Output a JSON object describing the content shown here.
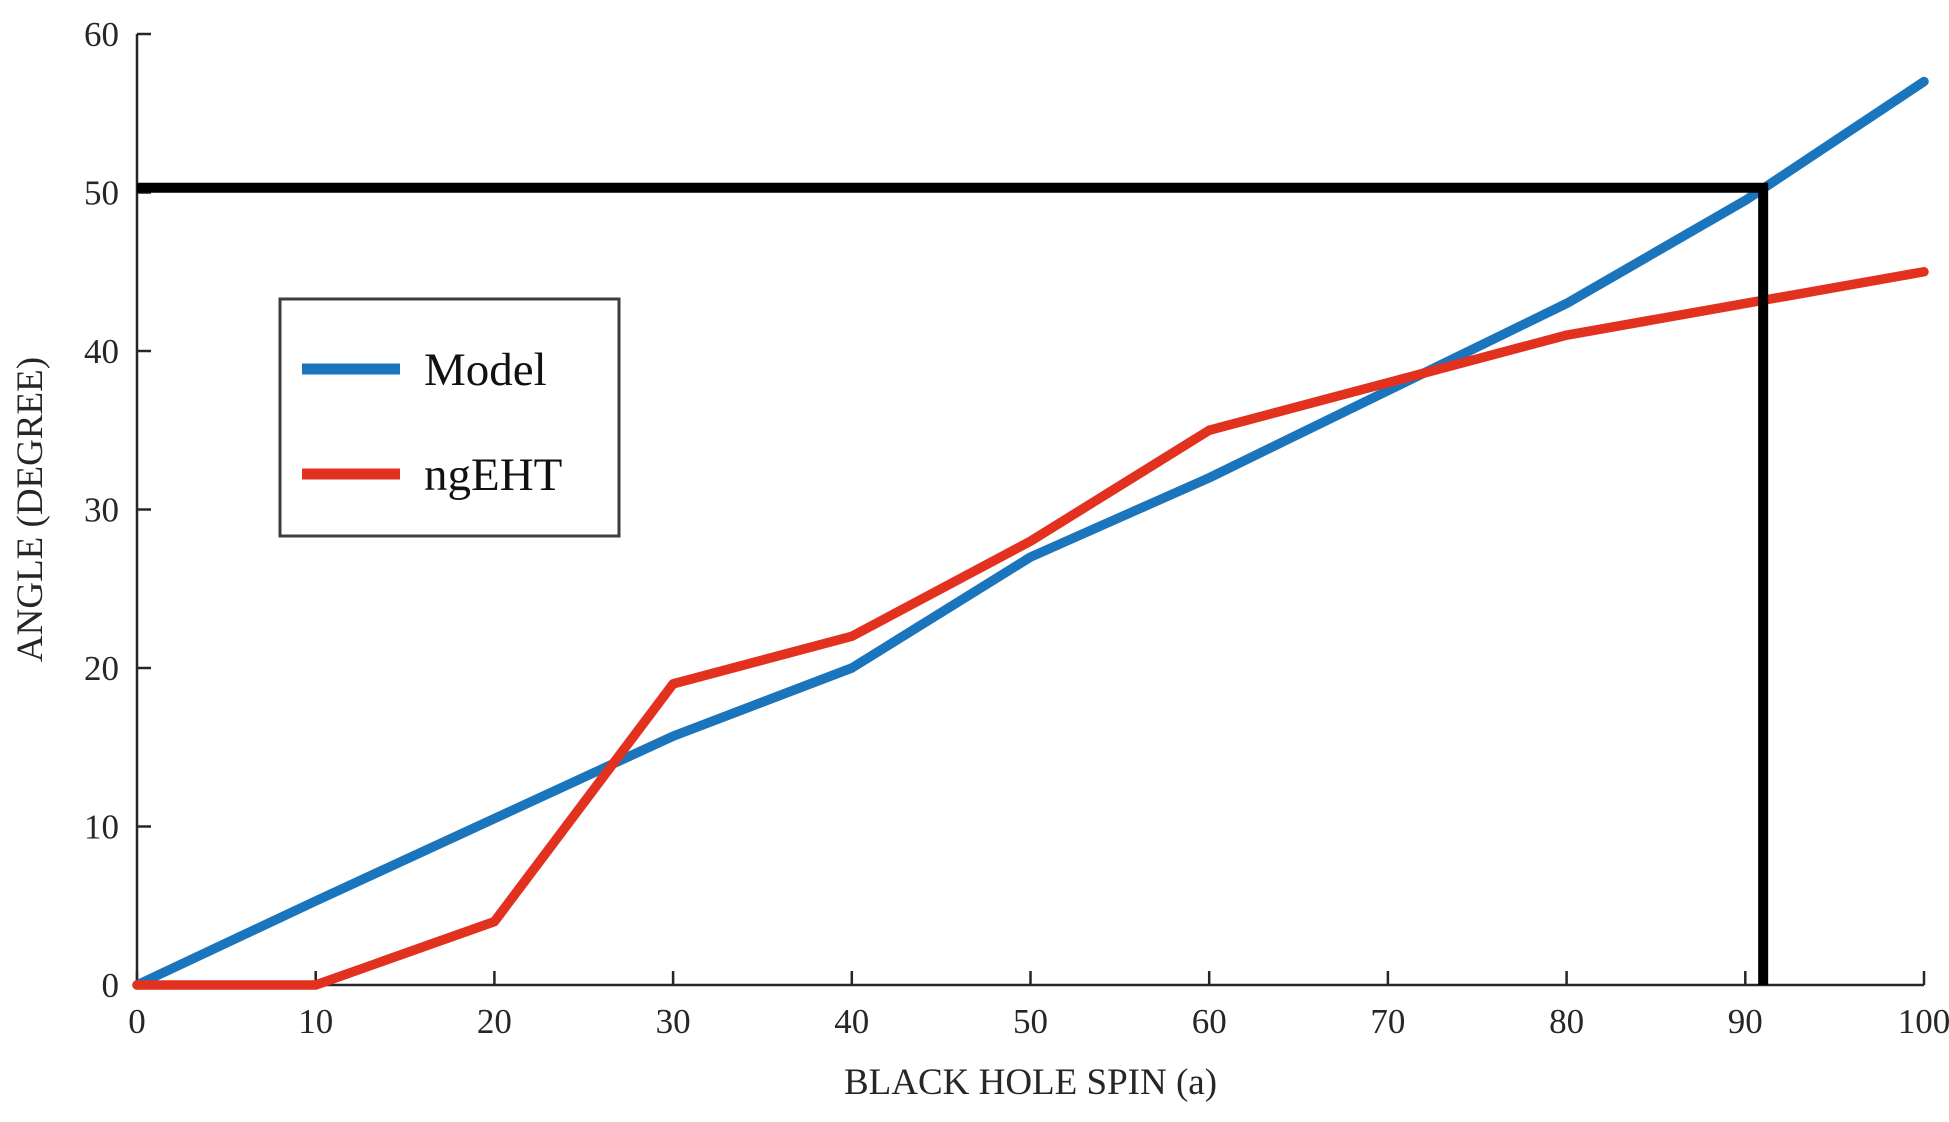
{
  "chart_data": {
    "type": "line",
    "title": "",
    "xlabel": "BLACK HOLE SPIN (a)",
    "ylabel": "ANGLE (DEGREE)",
    "xlim": [
      0,
      100
    ],
    "ylim": [
      0,
      60
    ],
    "xticks": [
      0,
      10,
      20,
      30,
      40,
      50,
      60,
      70,
      80,
      90,
      100
    ],
    "yticks": [
      0,
      10,
      20,
      30,
      40,
      50,
      60
    ],
    "grid": false,
    "axis_color": "#262626",
    "background_color": "#ffffff",
    "legend_position": "upper-left-inside",
    "x": [
      0,
      10,
      20,
      30,
      40,
      50,
      60,
      70,
      80,
      90,
      100
    ],
    "series": [
      {
        "name": "Model",
        "color": "#1b75bc",
        "values": [
          0,
          5.3,
          10.5,
          15.7,
          20,
          27,
          32,
          37.5,
          43,
          49.5,
          57
        ]
      },
      {
        "name": "ngEHT",
        "color": "#e2321f",
        "values": [
          0,
          0,
          4,
          19,
          22,
          28,
          35,
          38,
          41,
          43,
          45
        ]
      }
    ],
    "annotation": {
      "type": "crosshair",
      "x": 91,
      "y": 50.3,
      "color": "#000000"
    }
  }
}
